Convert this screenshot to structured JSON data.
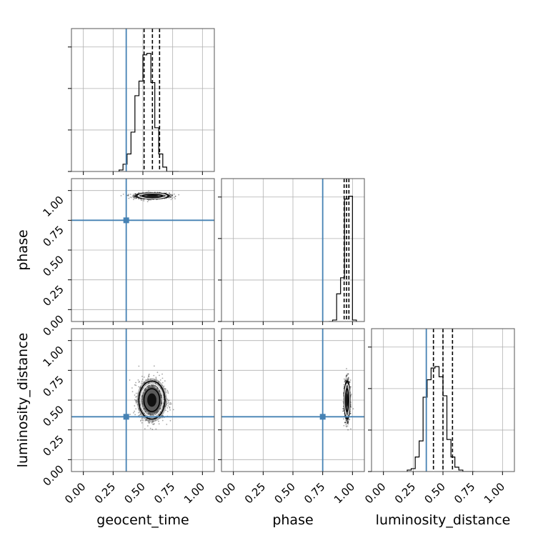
{
  "chart_data": {
    "type": "corner",
    "parameters": [
      "geocent_time",
      "phase",
      "luminosity_distance"
    ],
    "ticks": [
      "0.00",
      "0.25",
      "0.50",
      "0.75",
      "1.00"
    ],
    "range": [
      -0.1,
      1.1
    ],
    "truths": {
      "geocent_time": 0.36,
      "phase": 0.75,
      "luminosity_distance": 0.36
    },
    "colors": {
      "truth": "#4682b4",
      "hist": "#000000",
      "grid": "#b0b0b0"
    },
    "grid": true,
    "histograms": [
      {
        "param": "geocent_time",
        "bin_edges": [
          0.3,
          0.333,
          0.367,
          0.4,
          0.433,
          0.467,
          0.5,
          0.533,
          0.567,
          0.6,
          0.633,
          0.667,
          0.7,
          0.733,
          0.767,
          0.8
        ],
        "counts": [
          0.01,
          0.05,
          0.12,
          0.27,
          0.52,
          0.62,
          0.8,
          0.81,
          0.61,
          0.3,
          0.12,
          0.03,
          0.0,
          0.0,
          0.0
        ],
        "quantiles": [
          0.51,
          0.58,
          0.64
        ]
      },
      {
        "param": "phase",
        "bin_edges": [
          0.8,
          0.833,
          0.867,
          0.9,
          0.933,
          0.967,
          1.0,
          1.033
        ],
        "counts": [
          0.0,
          0.01,
          0.19,
          0.3,
          0.84,
          0.86,
          0.01
        ],
        "quantiles": [
          0.93,
          0.95,
          0.97
        ]
      },
      {
        "param": "luminosity_distance",
        "bin_edges": [
          0.2,
          0.233,
          0.267,
          0.3,
          0.333,
          0.367,
          0.4,
          0.433,
          0.467,
          0.5,
          0.533,
          0.567,
          0.6,
          0.633,
          0.667,
          0.7,
          0.733,
          0.767
        ],
        "counts": [
          0.01,
          0.02,
          0.1,
          0.21,
          0.51,
          0.63,
          0.71,
          0.72,
          0.65,
          0.52,
          0.22,
          0.1,
          0.03,
          0.01,
          0.0,
          0.0,
          0.0
        ],
        "quantiles": [
          0.42,
          0.5,
          0.58
        ]
      }
    ],
    "scatter_panels": [
      {
        "x": "geocent_time",
        "y": "phase",
        "center": [
          0.58,
          0.955
        ],
        "spread": [
          0.07,
          0.012
        ],
        "points": 1200
      },
      {
        "x": "geocent_time",
        "y": "luminosity_distance",
        "center": [
          0.575,
          0.5
        ],
        "spread": [
          0.055,
          0.08
        ],
        "points": 1400
      },
      {
        "x": "phase",
        "y": "luminosity_distance",
        "center": [
          0.955,
          0.5
        ],
        "spread": [
          0.012,
          0.08
        ],
        "points": 1200
      }
    ]
  }
}
